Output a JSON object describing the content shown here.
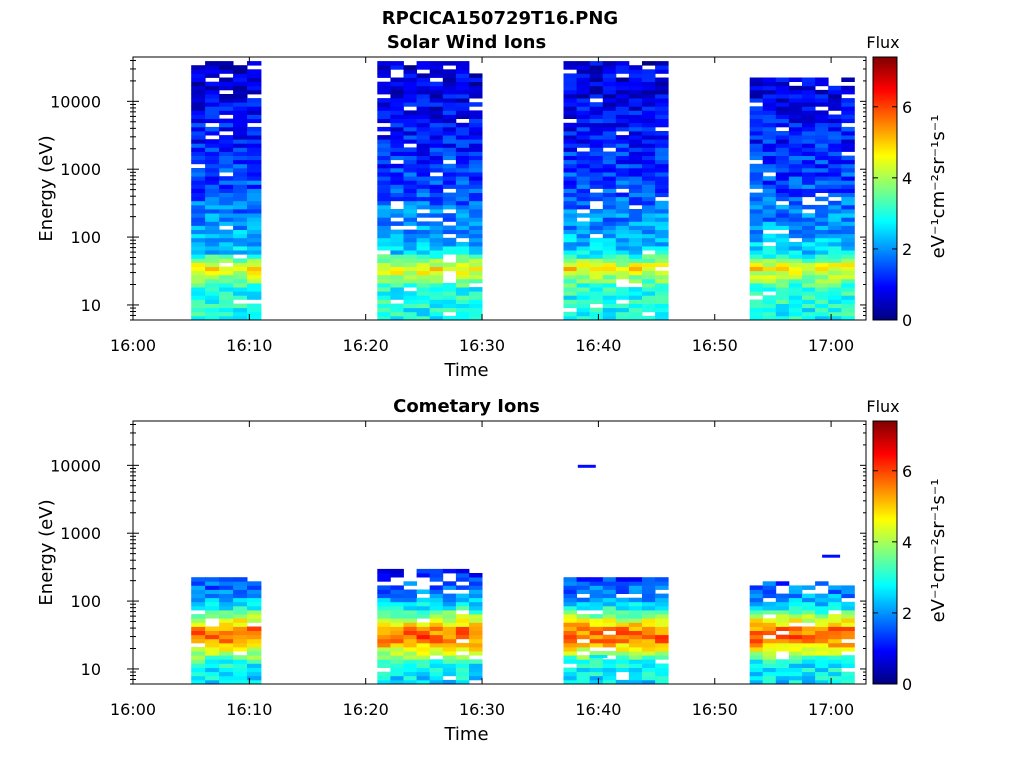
{
  "figure": {
    "title": "RPCICA150729T16.PNG"
  },
  "colors": {
    "colormap": [
      "#00007f",
      "#0000ff",
      "#007fff",
      "#00ffff",
      "#7fff7f",
      "#ffff00",
      "#ff7f00",
      "#ff0000",
      "#7f0000"
    ]
  },
  "chart_data": [
    {
      "type": "heatmap",
      "title": "Solar Wind Ions",
      "xlabel": "Time",
      "ylabel": "Energy (eV)",
      "y_scale": "log",
      "ylim": [
        6,
        45000
      ],
      "xlim": [
        "16:00",
        "17:03"
      ],
      "x_ticks": [
        "16:00",
        "16:10",
        "16:20",
        "16:30",
        "16:40",
        "16:50",
        "17:00"
      ],
      "y_ticks": [
        "10",
        "100",
        "1000",
        "10000"
      ],
      "colorbar": {
        "label": "Flux",
        "unit": "eV⁻¹cm⁻²sr⁻¹s⁻¹",
        "range": [
          0,
          7.4
        ],
        "ticks": [
          "0",
          "2",
          "4",
          "6"
        ]
      },
      "blocks": [
        {
          "start": "16:05",
          "end": "16:11",
          "top_ev": 40000
        },
        {
          "start": "16:21",
          "end": "16:30",
          "top_ev": 40000
        },
        {
          "start": "16:37",
          "end": "16:46",
          "top_ev": 37000
        },
        {
          "start": "16:53",
          "end": "17:02",
          "top_ev": 23000
        }
      ],
      "flux_profile": [
        {
          "energy_ev": 8,
          "flux": 2.9
        },
        {
          "energy_ev": 18,
          "flux": 3.0
        },
        {
          "energy_ev": 35,
          "flux": 4.8
        },
        {
          "energy_ev": 60,
          "flux": 2.5
        },
        {
          "energy_ev": 150,
          "flux": 2.0
        },
        {
          "energy_ev": 500,
          "flux": 1.5
        },
        {
          "energy_ev": 2000,
          "flux": 1.2
        },
        {
          "energy_ev": 10000,
          "flux": 0.8
        },
        {
          "energy_ev": 40000,
          "flux": 0.6
        }
      ]
    },
    {
      "type": "heatmap",
      "title": "Cometary Ions",
      "xlabel": "Time",
      "ylabel": "Energy (eV)",
      "y_scale": "log",
      "ylim": [
        6,
        45000
      ],
      "xlim": [
        "16:00",
        "17:03"
      ],
      "x_ticks": [
        "16:00",
        "16:10",
        "16:20",
        "16:30",
        "16:40",
        "16:50",
        "17:00"
      ],
      "y_ticks": [
        "10",
        "100",
        "1000",
        "10000"
      ],
      "colorbar": {
        "label": "Flux",
        "unit": "eV⁻¹cm⁻²sr⁻¹s⁻¹",
        "range": [
          0,
          7.4
        ],
        "ticks": [
          "0",
          "2",
          "4",
          "6"
        ]
      },
      "blocks": [
        {
          "start": "16:05",
          "end": "16:11",
          "top_ev": 220
        },
        {
          "start": "16:21",
          "end": "16:30",
          "top_ev": 280
        },
        {
          "start": "16:37",
          "end": "16:46",
          "top_ev": 220
        },
        {
          "start": "16:53",
          "end": "17:02",
          "top_ev": 200
        }
      ],
      "flux_profile": [
        {
          "energy_ev": 7,
          "flux": 2.6
        },
        {
          "energy_ev": 12,
          "flux": 2.8
        },
        {
          "energy_ev": 18,
          "flux": 4.2
        },
        {
          "energy_ev": 28,
          "flux": 5.8
        },
        {
          "energy_ev": 40,
          "flux": 5.5
        },
        {
          "energy_ev": 65,
          "flux": 3.5
        },
        {
          "energy_ev": 100,
          "flux": 2.2
        },
        {
          "energy_ev": 200,
          "flux": 1.4
        },
        {
          "energy_ev": 300,
          "flux": 1.0
        }
      ],
      "isolated_points": [
        {
          "time": "16:39",
          "energy_ev": 9500,
          "flux": 1.0
        },
        {
          "time": "16:40",
          "energy_ev": 15,
          "flux": 2.6
        },
        {
          "time": "17:00",
          "energy_ev": 450,
          "flux": 1.0
        }
      ]
    }
  ]
}
